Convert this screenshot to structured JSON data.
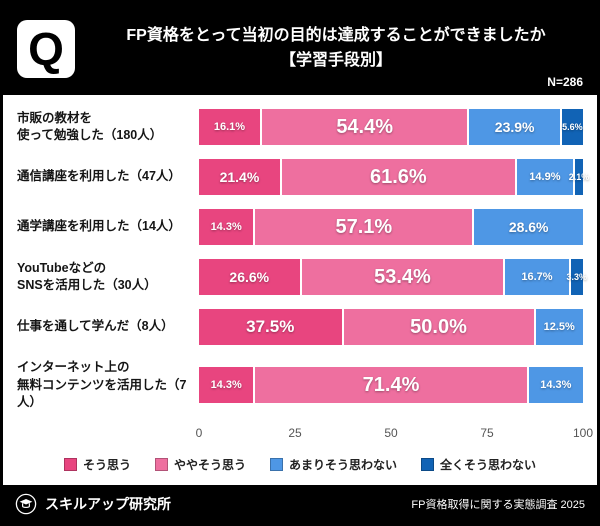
{
  "header": {
    "q_logo": "Q",
    "title_line1": "FP資格をとって当初の目的は達成することができましたか",
    "title_line2": "【学習手段別】",
    "sample_size": "N=286"
  },
  "chart_data": {
    "type": "bar",
    "variant": "horizontal-stacked-percentage",
    "title": "FP資格をとって当初の目的は達成することができましたか【学習手段別】",
    "xlabel": "",
    "ylabel": "",
    "xlim": [
      0,
      100
    ],
    "x_ticks": [
      "0",
      "25",
      "50",
      "75",
      "100"
    ],
    "grid": false,
    "legend_position": "bottom",
    "series": [
      {
        "name": "そう思う",
        "color": "#e8457f"
      },
      {
        "name": "ややそう思う",
        "color": "#ee6f9f"
      },
      {
        "name": "あまりそう思わない",
        "color": "#4e97e5"
      },
      {
        "name": "全くそう思わない",
        "color": "#1163b5"
      }
    ],
    "rows": [
      {
        "label_lines": [
          "市販の教材を",
          "使って勉強した（180人）"
        ],
        "values": [
          16.1,
          54.4,
          23.9,
          5.6
        ]
      },
      {
        "label_lines": [
          "通信講座を利用した（47人）"
        ],
        "values": [
          21.4,
          61.6,
          14.9,
          2.1
        ]
      },
      {
        "label_lines": [
          "通学講座を利用した（14人）"
        ],
        "values": [
          14.3,
          57.1,
          28.6,
          0
        ]
      },
      {
        "label_lines": [
          "YouTubeなどの",
          "SNSを活用した（30人）"
        ],
        "values": [
          26.6,
          53.4,
          16.7,
          3.3
        ]
      },
      {
        "label_lines": [
          "仕事を通して学んだ（8人）"
        ],
        "values": [
          37.5,
          50.0,
          12.5,
          0
        ]
      },
      {
        "label_lines": [
          "インターネット上の",
          "無料コンテンツを活用した（7人）"
        ],
        "values": [
          14.3,
          71.4,
          14.3,
          0
        ]
      }
    ]
  },
  "footer": {
    "brand": "スキルアップ研究所",
    "source": "FP資格取得に関する実態調査 2025"
  }
}
